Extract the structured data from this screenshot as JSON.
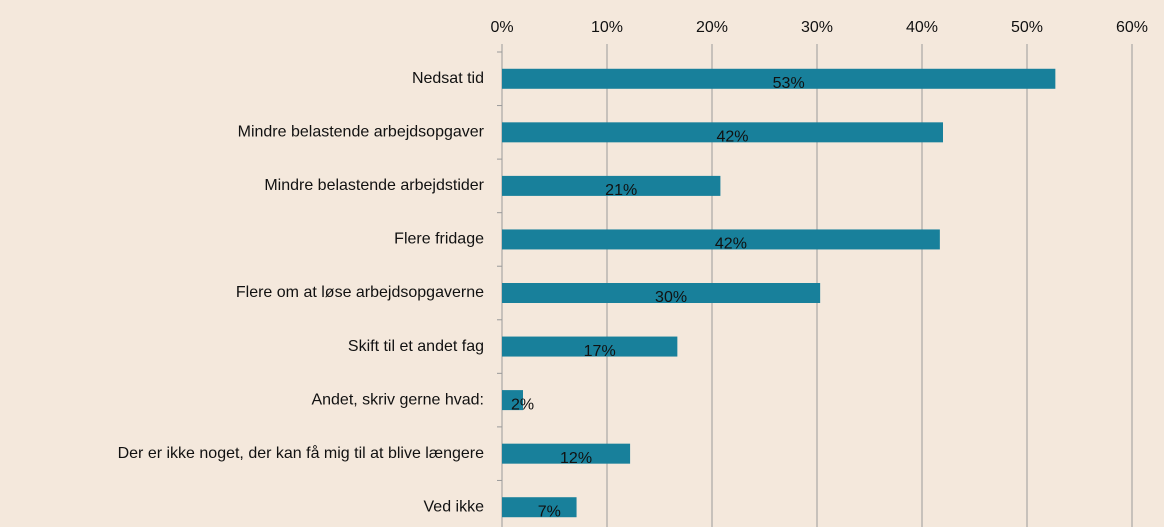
{
  "chart_data": {
    "type": "hbar",
    "categories": [
      "Nedsat tid",
      "Mindre belastende arbejdsopgaver",
      "Mindre belastende arbejdstider",
      "Flere fridage",
      "Flere om at løse arbejdsopgaverne",
      "Skift til et andet fag",
      "Andet, skriv gerne hvad:",
      "Der er ikke noget, der kan få mig til at blive længere",
      "Ved ikke"
    ],
    "values": [
      52.7,
      42.0,
      20.8,
      41.7,
      30.3,
      16.7,
      2.0,
      12.2,
      7.1
    ],
    "value_labels": [
      "53%",
      "42%",
      "21%",
      "42%",
      "30%",
      "17%",
      "2%",
      "12%",
      "7%"
    ],
    "color": "#18809b",
    "xlim": [
      0,
      60
    ],
    "xticks": [
      {
        "value": 0,
        "label": "0%"
      },
      {
        "value": 10,
        "label": "10%"
      },
      {
        "value": 20,
        "label": "20%"
      },
      {
        "value": 30,
        "label": "30%"
      },
      {
        "value": 40,
        "label": "40%"
      },
      {
        "value": 50,
        "label": "50%"
      },
      {
        "value": 60,
        "label": "60%"
      }
    ],
    "grid": true
  }
}
